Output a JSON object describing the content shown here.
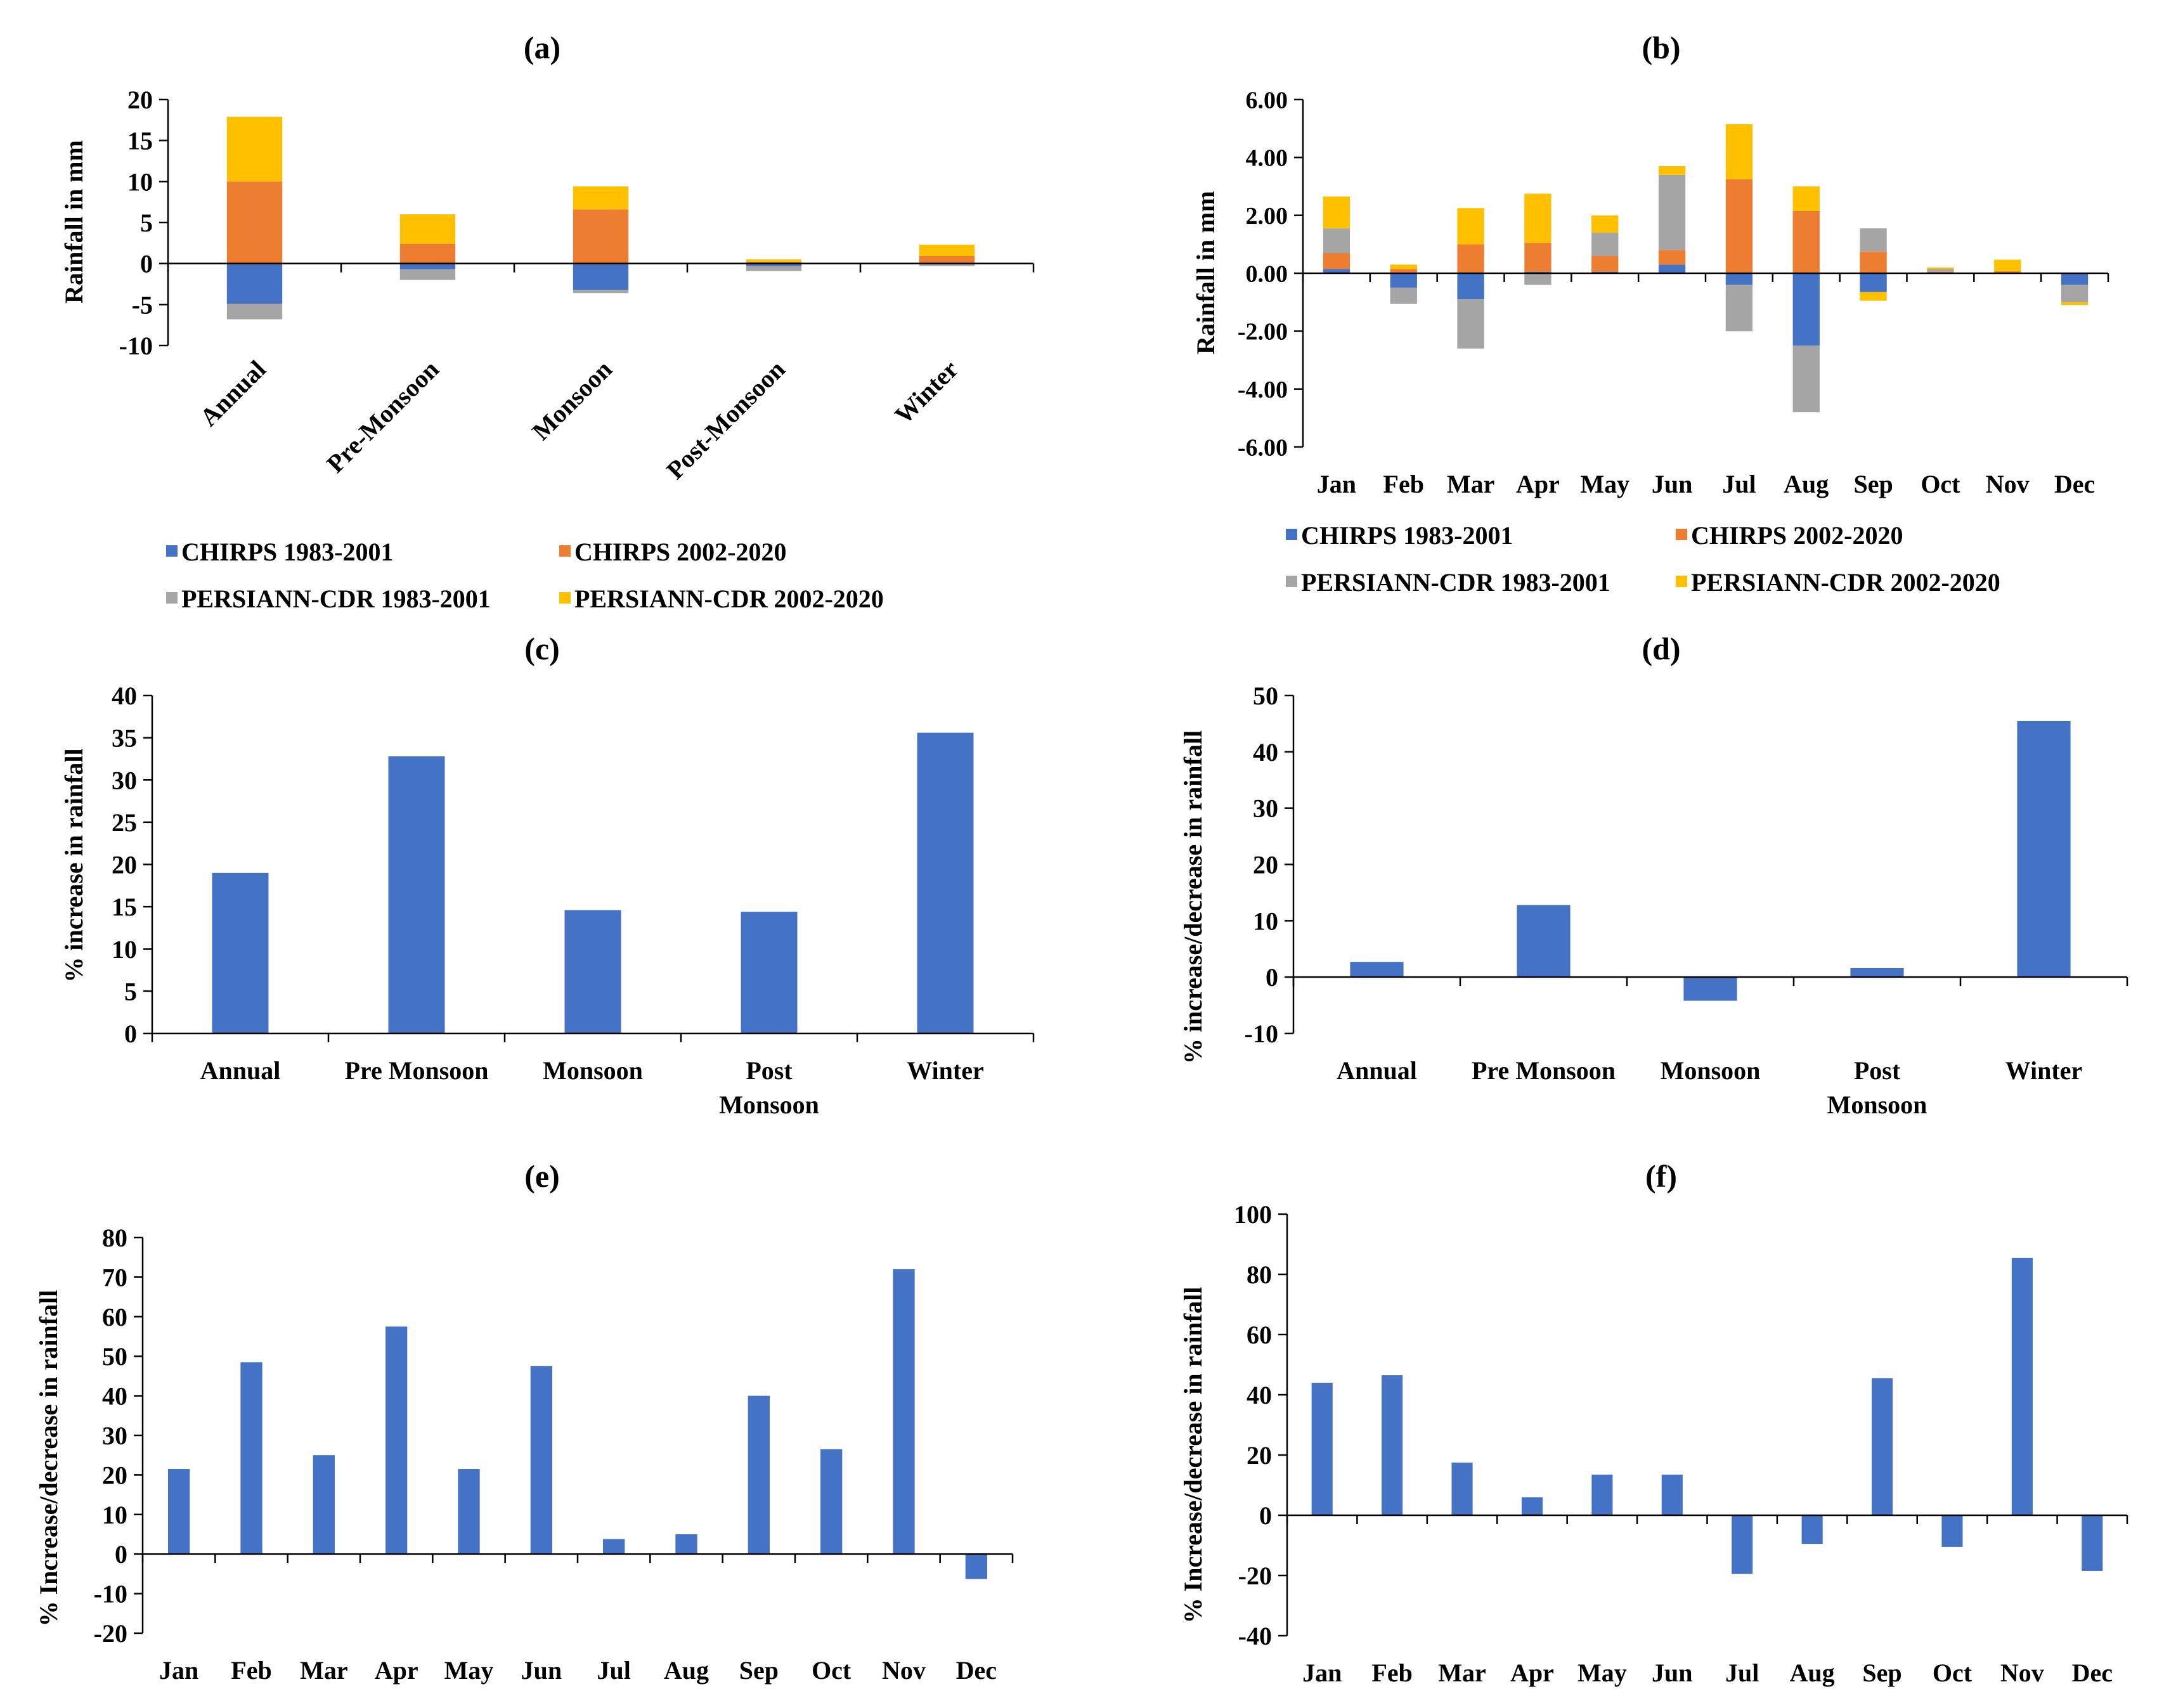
{
  "colors": {
    "chirps_early": "#4472C4",
    "chirps_late": "#ED7D31",
    "persiann_early": "#A5A5A5",
    "persiann_late": "#FFC000",
    "single": "#4472C4"
  },
  "chart_data": [
    {
      "id": "a",
      "title": "(a)",
      "type": "bar",
      "stacked": true,
      "ylabel": "Rainfall in mm",
      "xlabel": "",
      "categories": [
        "Annual",
        "Pre-Monsoon",
        "Monsoon",
        "Post-Monsoon",
        "Winter"
      ],
      "ylim": [
        -10,
        20
      ],
      "yticks": [
        -10,
        -5,
        0,
        5,
        10,
        15,
        20
      ],
      "ydecimals": 0,
      "series": [
        {
          "name": "CHIRPS 1983-2001",
          "color_key": "chirps_early",
          "values": [
            -4.9,
            -0.7,
            -3.2,
            -0.3,
            0.1
          ]
        },
        {
          "name": "CHIRPS 2002-2020",
          "color_key": "chirps_late",
          "values": [
            10.0,
            2.4,
            6.6,
            0.2,
            0.8
          ]
        },
        {
          "name": "PERSIANN-CDR 1983-2001",
          "color_key": "persiann_early",
          "values": [
            -1.9,
            -1.3,
            -0.4,
            -0.6,
            -0.3
          ]
        },
        {
          "name": "PERSIANN-CDR 2002-2020",
          "color_key": "persiann_late",
          "values": [
            7.9,
            3.6,
            2.8,
            0.3,
            1.4
          ]
        }
      ],
      "legend": "bottom"
    },
    {
      "id": "b",
      "title": "(b)",
      "type": "bar",
      "stacked": true,
      "ylabel": "Rainfall in mm",
      "xlabel": "",
      "categories": [
        "Jan",
        "Feb",
        "Mar",
        "Apr",
        "May",
        "Jun",
        "Jul",
        "Aug",
        "Sep",
        "Oct",
        "Nov",
        "Dec"
      ],
      "ylim": [
        -6,
        6
      ],
      "yticks": [
        -6,
        -4,
        -2,
        0,
        2,
        4,
        6
      ],
      "ydecimals": 2,
      "series": [
        {
          "name": "CHIRPS 1983-2001",
          "color_key": "chirps_early",
          "values": [
            0.15,
            -0.5,
            -0.9,
            0.05,
            0.05,
            0.3,
            -0.4,
            -2.5,
            -0.65,
            0.02,
            0.02,
            -0.4
          ]
        },
        {
          "name": "CHIRPS 2002-2020",
          "color_key": "chirps_late",
          "values": [
            0.55,
            0.15,
            1.0,
            1.0,
            0.55,
            0.5,
            3.25,
            2.15,
            0.75,
            0.03,
            0.05,
            0.0
          ]
        },
        {
          "name": "PERSIANN-CDR 1983-2001",
          "color_key": "persiann_early",
          "values": [
            0.85,
            -0.55,
            -1.7,
            -0.4,
            0.8,
            2.6,
            -1.6,
            -2.3,
            0.8,
            0.1,
            0.0,
            -0.6
          ]
        },
        {
          "name": "PERSIANN-CDR 2002-2020",
          "color_key": "persiann_late",
          "values": [
            1.1,
            0.15,
            1.25,
            1.7,
            0.6,
            0.3,
            1.9,
            0.85,
            -0.3,
            0.05,
            0.4,
            -0.1
          ]
        }
      ],
      "legend": "bottom"
    },
    {
      "id": "c",
      "title": "(c)",
      "type": "bar",
      "ylabel": "% increase in rainfall",
      "xlabel": "",
      "categories": [
        [
          "Annual"
        ],
        [
          "Pre Monsoon"
        ],
        [
          "Monsoon"
        ],
        [
          "Post",
          "Monsoon"
        ],
        [
          "Winter"
        ]
      ],
      "ylim": [
        0,
        40
      ],
      "yticks": [
        0,
        5,
        10,
        15,
        20,
        25,
        30,
        35,
        40
      ],
      "ydecimals": 0,
      "values": [
        19.0,
        32.8,
        14.6,
        14.4,
        35.6
      ]
    },
    {
      "id": "d",
      "title": "(d)",
      "type": "bar",
      "ylabel": "% increase/decrease in rainfall",
      "xlabel": "",
      "categories": [
        [
          "Annual"
        ],
        [
          "Pre Monsoon"
        ],
        [
          "Monsoon"
        ],
        [
          "Post",
          "Monsoon"
        ],
        [
          "Winter"
        ]
      ],
      "ylim": [
        -10,
        50
      ],
      "yticks": [
        -10,
        0,
        10,
        20,
        30,
        40,
        50
      ],
      "ydecimals": 0,
      "values": [
        2.7,
        12.8,
        -4.2,
        1.6,
        45.5
      ]
    },
    {
      "id": "e",
      "title": "(e)",
      "type": "bar",
      "ylabel": "% Increase/decrease in rainfall",
      "xlabel": "",
      "categories": [
        "Jan",
        "Feb",
        "Mar",
        "Apr",
        "May",
        "Jun",
        "Jul",
        "Aug",
        "Sep",
        "Oct",
        "Nov",
        "Dec"
      ],
      "ylim": [
        -20,
        80
      ],
      "yticks": [
        -20,
        -10,
        0,
        10,
        20,
        30,
        40,
        50,
        60,
        70,
        80
      ],
      "ydecimals": 0,
      "values": [
        21.5,
        48.5,
        25.0,
        57.5,
        21.5,
        47.5,
        3.8,
        5.0,
        40.0,
        26.5,
        72.0,
        -6.3
      ]
    },
    {
      "id": "f",
      "title": "(f)",
      "type": "bar",
      "ylabel": "% Increase/decrease in rainfall",
      "xlabel": "",
      "categories": [
        "Jan",
        "Feb",
        "Mar",
        "Apr",
        "May",
        "Jun",
        "Jul",
        "Aug",
        "Sep",
        "Oct",
        "Nov",
        "Dec"
      ],
      "ylim": [
        -40,
        100
      ],
      "yticks": [
        -40,
        -20,
        0,
        20,
        40,
        60,
        80,
        100
      ],
      "ydecimals": 0,
      "values": [
        44.0,
        46.5,
        17.5,
        6.0,
        13.5,
        13.5,
        -19.5,
        -9.5,
        45.5,
        -10.5,
        85.5,
        -18.5
      ]
    }
  ]
}
